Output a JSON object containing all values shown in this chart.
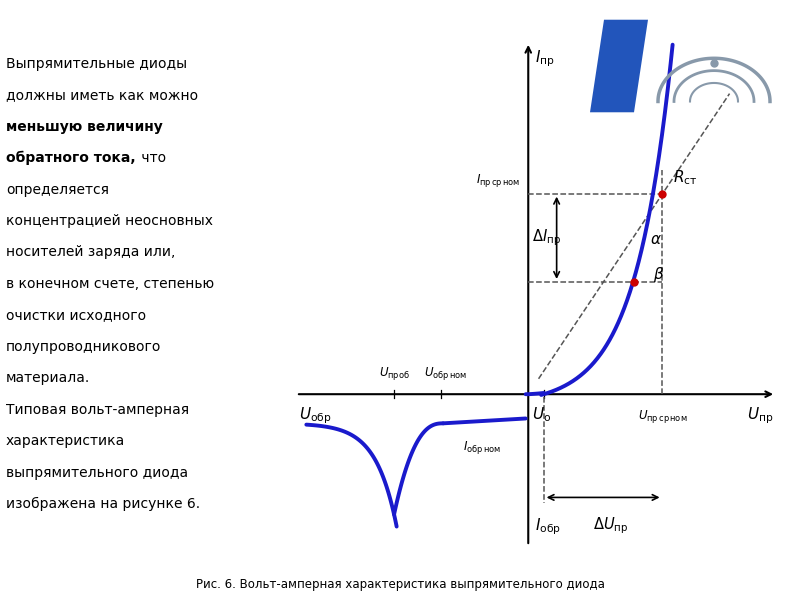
{
  "bg_color": "#ffffff",
  "curve_color": "#1a1acc",
  "dashed_color": "#555555",
  "red_dot_color": "#cc0000",
  "axis_color": "#000000",
  "caption": "Рис. 6. Вольт-амперная характеристика выпрямительного диода",
  "logo_stripe_color": "#2255bb",
  "logo_arc_color": "#8899aa",
  "xlim": [
    -4.5,
    4.8
  ],
  "ylim": [
    -2.5,
    5.8
  ],
  "x_Uo": 0.3,
  "x_Upr_sr_nom": 2.6,
  "x_Upr": 4.4,
  "x_Uprob": -2.6,
  "x_Uobr_nom": -1.7,
  "x_Uobr": -4.2,
  "y_Ipr_sr_nom": 3.3,
  "y_beta": 1.85,
  "x_beta": 2.05,
  "y_Iobr_nom": -0.48,
  "font_size_main": 10,
  "font_size_label": 10,
  "font_size_small": 8.5
}
